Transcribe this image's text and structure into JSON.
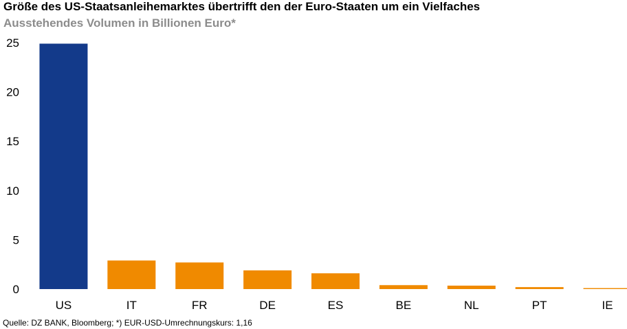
{
  "title": "Größe des US-Staatsanleihemarktes übertrifft den der Euro-Staaten um ein Vielfaches",
  "subtitle": "Ausstehendes Volumen in Billionen Euro*",
  "source": "Quelle: DZ BANK, Bloomberg; *) EUR-USD-Umrechnungskurs: 1,16",
  "chart_data": {
    "type": "bar",
    "title": "Größe des US-Staatsanleihemarktes übertrifft den der Euro-Staaten um ein Vielfaches",
    "subtitle": "Ausstehendes Volumen in Billionen Euro*",
    "xlabel": "",
    "ylabel": "",
    "categories": [
      "US",
      "IT",
      "FR",
      "DE",
      "ES",
      "BE",
      "NL",
      "PT",
      "IE"
    ],
    "values": [
      24.9,
      2.9,
      2.7,
      1.9,
      1.6,
      0.4,
      0.35,
      0.2,
      0.1
    ],
    "colors": [
      "#133a8a",
      "#f08a00",
      "#f08a00",
      "#f08a00",
      "#f08a00",
      "#f08a00",
      "#f08a00",
      "#f08a00",
      "#f08a00"
    ],
    "ylim": [
      0,
      25
    ],
    "yticks": [
      0,
      5,
      10,
      15,
      20,
      25
    ],
    "grid": false,
    "legend": "none"
  }
}
